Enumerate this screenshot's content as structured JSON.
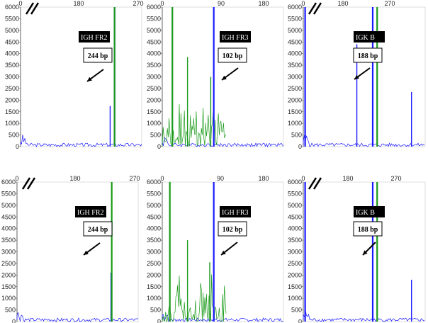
{
  "chart_data": [
    {
      "type": "line",
      "label": "IGH FR2",
      "size": "244 bp",
      "x_ticks": [
        "0",
        "180",
        "270"
      ],
      "broken_axis": true,
      "y_ticks": [
        "0",
        "500",
        "1000",
        "1500",
        "2000",
        "2500",
        "3000",
        "3500",
        "4000",
        "4500",
        "5000",
        "5500",
        "6000"
      ],
      "ylim": [
        0,
        6000
      ],
      "peaks": [
        {
          "color": "#1a1aff",
          "x": 244,
          "y": 1750
        },
        {
          "color": "#1a1aff",
          "x": 256,
          "y": 6000
        },
        {
          "color": "#1a9a1a",
          "x": 256,
          "y": 6000
        }
      ]
    },
    {
      "type": "line",
      "label": "IGH FR3",
      "size": "102 bp",
      "x_ticks": [
        "0",
        "90",
        "180"
      ],
      "broken_axis": false,
      "y_ticks": [
        "0",
        "500",
        "1000",
        "1500",
        "2000",
        "2500",
        "3000",
        "3500",
        "4000",
        "4500",
        "5000",
        "5500",
        "6000"
      ],
      "ylim": [
        0,
        6000
      ],
      "peaks": [
        {
          "color": "#1a9a1a",
          "x": 20,
          "y": 6000
        },
        {
          "color": "#1a9a1a",
          "x": 50,
          "y": 3850
        },
        {
          "color": "#1a1aff",
          "x": 102,
          "y": 6000
        },
        {
          "color": "#1a9a1a",
          "x": 96,
          "y": 3000
        }
      ]
    },
    {
      "type": "line",
      "label": "IGK B",
      "size": "188 bp",
      "x_ticks": [
        "0",
        "180",
        "270"
      ],
      "broken_axis": true,
      "y_ticks": [
        "0",
        "500",
        "1000",
        "1500",
        "2000",
        "2500",
        "3000",
        "3500",
        "4000",
        "4500",
        "5000",
        "5500",
        "6000"
      ],
      "ylim": [
        0,
        6000
      ],
      "peaks": [
        {
          "color": "#1a1aff",
          "x": 5,
          "y": 6000
        },
        {
          "color": "#1a1aff",
          "x": 145,
          "y": 4400
        },
        {
          "color": "#1a1aff",
          "x": 188,
          "y": 6000
        },
        {
          "color": "#1a9a1a",
          "x": 200,
          "y": 6000
        },
        {
          "color": "#1a1aff",
          "x": 293,
          "y": 2350
        }
      ]
    },
    {
      "type": "line",
      "label": "IGH FR2",
      "size": "244 bp",
      "x_ticks": [
        "0",
        "180",
        "270"
      ],
      "broken_axis": true,
      "y_ticks": [
        "0",
        "500",
        "1000",
        "1500",
        "2000",
        "2500",
        "3000",
        "3500",
        "4000",
        "4500",
        "5000",
        "5500",
        "6000"
      ],
      "ylim": [
        0,
        6000
      ],
      "peaks": [
        {
          "color": "#1a1aff",
          "x": 256,
          "y": 2100
        },
        {
          "color": "#1a9a1a",
          "x": 258,
          "y": 6000
        }
      ]
    },
    {
      "type": "line",
      "label": "IGH FR3",
      "size": "102 bp",
      "x_ticks": [
        "0",
        "90",
        "180"
      ],
      "broken_axis": false,
      "y_ticks": [
        "0",
        "500",
        "1000",
        "1500",
        "2000",
        "2500",
        "3000",
        "3500",
        "4000",
        "4500",
        "5000",
        "5500",
        "6000"
      ],
      "ylim": [
        0,
        6000
      ],
      "peaks": [
        {
          "color": "#1a9a1a",
          "x": 15,
          "y": 6000
        },
        {
          "color": "#1a9a1a",
          "x": 50,
          "y": 3500
        },
        {
          "color": "#1a1aff",
          "x": 102,
          "y": 6000
        },
        {
          "color": "#1a9a1a",
          "x": 94,
          "y": 2550
        }
      ]
    },
    {
      "type": "line",
      "label": "IGK B",
      "size": "188 bp",
      "x_ticks": [
        "0",
        "180",
        "270"
      ],
      "broken_axis": true,
      "y_ticks": [
        "0",
        "500",
        "1000",
        "1500",
        "2000",
        "2500",
        "3000",
        "3500",
        "4000",
        "4500",
        "5000",
        "5500",
        "6000"
      ],
      "ylim": [
        0,
        6000
      ],
      "peaks": [
        {
          "color": "#1a1aff",
          "x": 5,
          "y": 6000
        },
        {
          "color": "#1a1aff",
          "x": 188,
          "y": 6000
        },
        {
          "color": "#1a9a1a",
          "x": 200,
          "y": 6000
        },
        {
          "color": "#1a1aff",
          "x": 293,
          "y": 1800
        }
      ]
    }
  ]
}
